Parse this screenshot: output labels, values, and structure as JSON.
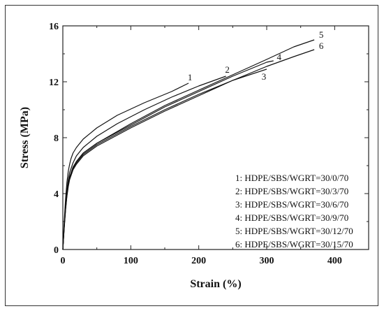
{
  "chart_data": {
    "type": "line",
    "title": "",
    "xlabel": "Strain (%)",
    "ylabel": "Stress (MPa)",
    "xlim": [
      0,
      450
    ],
    "ylim": [
      0,
      16
    ],
    "xticks": [
      0,
      100,
      200,
      300,
      400
    ],
    "yticks": [
      0,
      4,
      8,
      12,
      16
    ],
    "legend_position": "bottom-right",
    "legend_entries": [
      "1: HDPE/SBS/WGRT=30/0/70",
      "2: HDPE/SBS/WGRT=30/3/70",
      "3: HDPE/SBS/WGRT=30/6/70",
      "4: HDPE/SBS/WGRT=30/9/70",
      "5: HDPE/SBS/WGRT=30/12/70",
      "6: HDPE/SBS/WGRT=30/15/70"
    ],
    "series": [
      {
        "label": "1",
        "x": [
          0,
          2,
          4,
          6,
          8,
          10,
          12,
          15,
          20,
          30,
          50,
          80,
          120,
          160,
          185
        ],
        "y": [
          0,
          2.0,
          3.6,
          4.8,
          5.6,
          6.1,
          6.5,
          6.9,
          7.3,
          7.9,
          8.7,
          9.6,
          10.5,
          11.3,
          11.9
        ]
      },
      {
        "label": "2",
        "x": [
          0,
          2,
          4,
          6,
          8,
          10,
          15,
          20,
          30,
          50,
          80,
          120,
          160,
          200,
          240
        ],
        "y": [
          0,
          1.8,
          3.2,
          4.3,
          5.0,
          5.5,
          6.2,
          6.7,
          7.3,
          8.1,
          9.0,
          10.0,
          10.9,
          11.7,
          12.4
        ]
      },
      {
        "label": "3",
        "x": [
          0,
          2,
          4,
          6,
          8,
          10,
          15,
          20,
          30,
          50,
          100,
          150,
          200,
          250,
          300
        ],
        "y": [
          0,
          1.6,
          2.9,
          3.9,
          4.6,
          5.1,
          5.8,
          6.2,
          6.8,
          7.5,
          8.8,
          10.0,
          11.1,
          12.1,
          12.9
        ]
      },
      {
        "label": "4",
        "x": [
          0,
          2,
          4,
          6,
          8,
          10,
          15,
          20,
          30,
          50,
          100,
          150,
          200,
          250,
          300,
          310
        ],
        "y": [
          0,
          1.7,
          3.0,
          4.0,
          4.7,
          5.2,
          5.9,
          6.3,
          6.9,
          7.6,
          8.9,
          10.2,
          11.3,
          12.4,
          13.4,
          13.5
        ]
      },
      {
        "label": "5",
        "x": [
          0,
          2,
          4,
          6,
          8,
          10,
          15,
          20,
          30,
          50,
          100,
          150,
          200,
          250,
          300,
          340,
          370
        ],
        "y": [
          0,
          1.6,
          2.9,
          3.9,
          4.6,
          5.1,
          5.8,
          6.3,
          6.9,
          7.6,
          9.0,
          10.3,
          11.4,
          12.5,
          13.6,
          14.5,
          15.0
        ]
      },
      {
        "label": "6",
        "x": [
          0,
          2,
          4,
          6,
          8,
          10,
          15,
          20,
          30,
          50,
          100,
          150,
          200,
          250,
          300,
          340,
          370
        ],
        "y": [
          0,
          1.5,
          2.8,
          3.8,
          4.5,
          5.0,
          5.7,
          6.1,
          6.7,
          7.4,
          8.7,
          9.9,
          11.0,
          12.1,
          13.1,
          13.8,
          14.3
        ]
      }
    ]
  }
}
